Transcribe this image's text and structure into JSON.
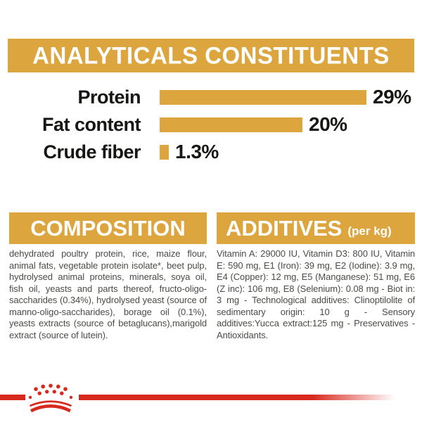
{
  "colors": {
    "gold": "#DCA53E",
    "red": "#D8291F",
    "label_text": "#161614",
    "body_text": "#4B4B47"
  },
  "header": {
    "title": "ANALYTICALS CONSTITUENTS"
  },
  "chart_data": {
    "type": "bar",
    "orientation": "horizontal",
    "title": "ANALYTICALS CONSTITUENTS",
    "categories": [
      "Protein",
      "Fat content",
      "Crude fiber"
    ],
    "values": [
      29,
      20,
      1.3
    ],
    "value_labels": [
      "29%",
      "20%",
      "1.3%"
    ],
    "unit": "%",
    "xlim": [
      0,
      29
    ],
    "bar_color": "#DCA53E",
    "grid": false,
    "legend": false
  },
  "sections": {
    "composition": {
      "title": "COMPOSITION",
      "body": "dehydrated poultry protein, rice, maize flour, animal fats, vegetable protein isolate*, beet pulp, hydrolysed animal proteins, minerals, soya oil, fish oil, yeasts and parts thereof, fructo-oligo-saccharides (0.34%), hydrolysed yeast (source of manno-oligo-saccharides), borage oil (0.1%), yeasts extracts (source of betaglucans),marigold extract (source of lutein)."
    },
    "additives": {
      "title": "ADDITIVES",
      "title_suffix": "(per kg)",
      "body": "Vitamin A: 29000 IU, Vitamin D3: 800 IU, Vitamin E: 590 mg, E1 (Iron): 39 mg, E2 (Iodine): 3.9 mg, E4 (Copper): 12 mg, E5 (Manganese): 51 mg, E6 (Z inc): 106 mg, E8 (Selenium): 0.08 mg - Biot in: 3 mg - Technological additives: Clinoptilolite of sedimentary origin: 10 g - Sensory additives:Yucca extract:125 mg - Preservatives - Antioxidants."
    }
  },
  "logo": {
    "name": "royal-canin-crown",
    "color": "#D8291F"
  }
}
